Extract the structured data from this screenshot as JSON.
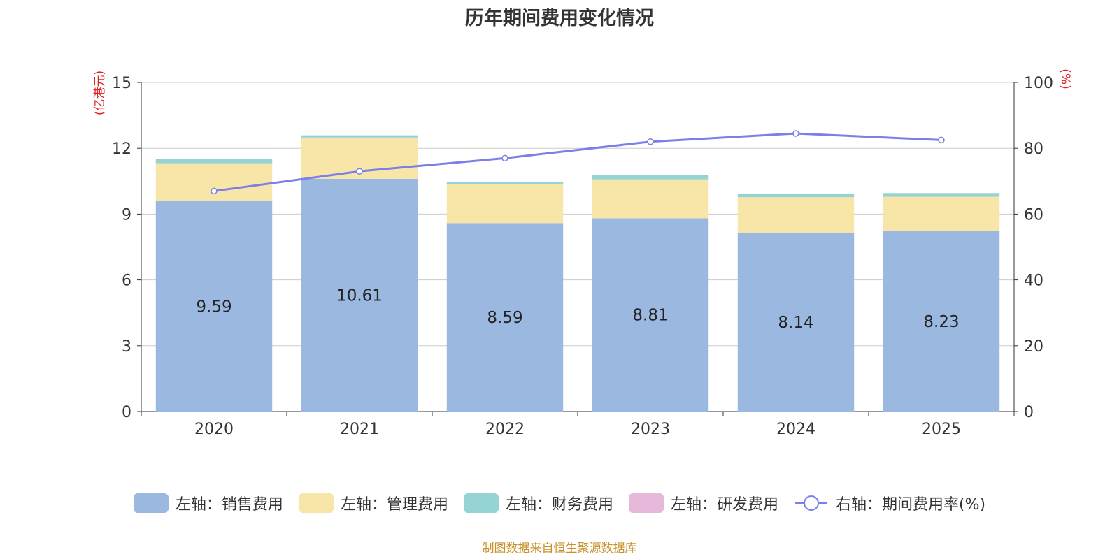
{
  "chart_data": {
    "type": "bar",
    "stacked": true,
    "title": "历年期间费用变化情况",
    "categories": [
      "2020",
      "2021",
      "2022",
      "2023",
      "2024",
      "2025"
    ],
    "left_axis": {
      "unit": "(亿港元)",
      "range": [
        0,
        15
      ],
      "ticks": [
        0,
        3,
        6,
        9,
        12,
        15
      ]
    },
    "right_axis": {
      "unit": "(%)",
      "range": [
        0,
        100
      ],
      "ticks": [
        0,
        20,
        40,
        60,
        80,
        100
      ]
    },
    "series": [
      {
        "name": "左轴：销售费用",
        "type": "bar",
        "axis": "left",
        "color": "#9bb8e1",
        "values": [
          9.59,
          10.61,
          8.59,
          8.81,
          8.14,
          8.23
        ],
        "show_labels": true
      },
      {
        "name": "左轴：管理费用",
        "type": "bar",
        "axis": "left",
        "color": "#f7e6a8",
        "values": [
          1.73,
          1.88,
          1.78,
          1.77,
          1.63,
          1.56
        ]
      },
      {
        "name": "左轴：财务费用",
        "type": "bar",
        "axis": "left",
        "color": "#96d3d4",
        "values": [
          0.2,
          0.1,
          0.1,
          0.2,
          0.17,
          0.17
        ]
      },
      {
        "name": "左轴：研发费用",
        "type": "bar",
        "axis": "left",
        "color": "#e6b8d9",
        "values": [
          0,
          0,
          0,
          0,
          0,
          0
        ]
      },
      {
        "name": "右轴：期间费用率(%)",
        "type": "line",
        "axis": "right",
        "color": "#7b7fe8",
        "values": [
          67,
          73,
          77,
          82,
          84.5,
          82.5
        ]
      }
    ],
    "gridlines": true,
    "legend_position": "bottom"
  },
  "source_note": "制图数据来自恒生聚源数据库"
}
